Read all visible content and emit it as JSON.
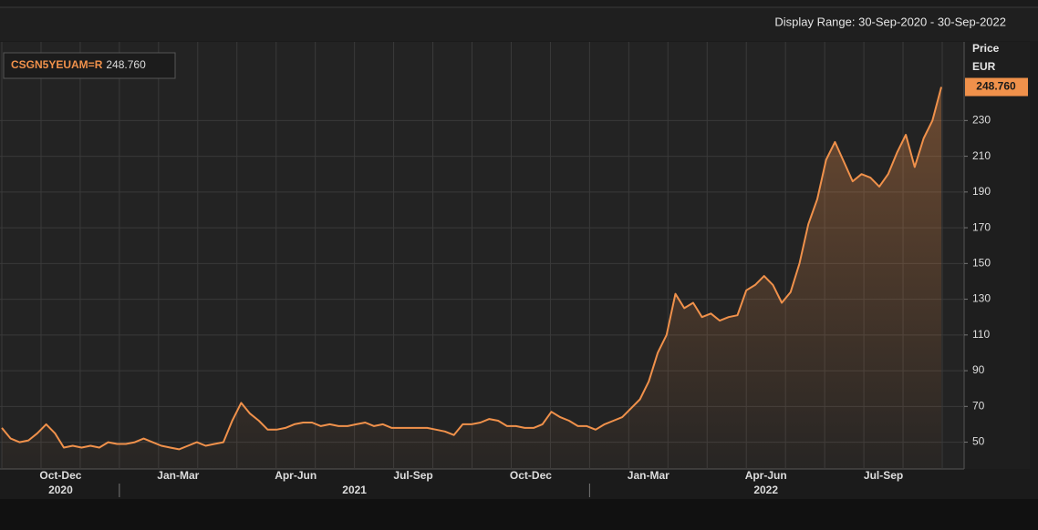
{
  "display_range": "Display Range: 30-Sep-2020 - 30-Sep-2022",
  "chart_data": {
    "type": "line",
    "y_axis_title": "Price",
    "y_axis_unit": "EUR",
    "series": [
      {
        "name": "CSGN5YEUAM=R",
        "color": "#f0914b",
        "values": [
          58,
          52,
          50,
          51,
          55,
          60,
          55,
          47,
          48,
          47,
          48,
          47,
          50,
          49,
          49,
          50,
          52,
          50,
          48,
          47,
          46,
          48,
          50,
          48,
          49,
          50,
          62,
          72,
          66,
          62,
          57,
          57,
          58,
          60,
          61,
          61,
          59,
          60,
          59,
          59,
          60,
          61,
          59,
          60,
          58,
          58,
          58,
          58,
          58,
          57,
          56,
          54,
          60,
          60,
          61,
          63,
          62,
          59,
          59,
          58,
          58,
          60,
          67,
          64,
          62,
          59,
          59,
          57,
          60,
          62,
          64,
          69,
          74,
          84,
          100,
          110,
          133,
          125,
          128,
          120,
          122,
          118,
          120,
          121,
          135,
          138,
          143,
          138,
          128,
          134,
          150,
          172,
          186,
          208,
          218,
          207,
          196,
          200,
          198,
          193,
          200,
          212,
          222,
          204,
          220,
          230,
          248.76
        ]
      }
    ],
    "last_price": {
      "value": 248.76,
      "label": "248.760"
    },
    "ylim": [
      35,
      274
    ],
    "yticks": [
      50,
      70,
      90,
      110,
      130,
      150,
      170,
      190,
      210,
      230
    ],
    "grid": true,
    "area_fill": true,
    "x_axis": [
      {
        "year": "2020",
        "quarters": [
          "Oct-Dec"
        ]
      },
      {
        "year": "2021",
        "quarters": [
          "Jan-Mar",
          "Apr-Jun",
          "Jul-Sep",
          "Oct-Dec"
        ]
      },
      {
        "year": "2022",
        "quarters": [
          "Jan-Mar",
          "Apr-Jun",
          "Jul-Sep"
        ]
      }
    ]
  }
}
